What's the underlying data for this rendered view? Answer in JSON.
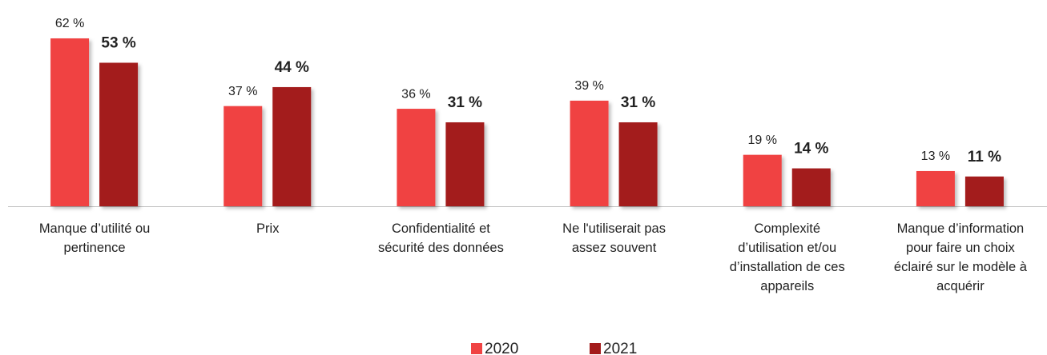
{
  "chart_data": {
    "type": "bar",
    "categories": [
      "Manque d’utilité ou\npertinence",
      "Prix",
      "Confidentialité et\nsécurité des données",
      "Ne l'utiliserait pas\nassez souvent",
      "Complexité\nd’utilisation et/ou\nd’installation de ces\nappareils",
      "Manque d’information\npour faire un choix\néclairé sur le modèle à\nacquérir"
    ],
    "series": [
      {
        "name": "2020",
        "color": "#f04343",
        "values": [
          62,
          37,
          36,
          39,
          19,
          13
        ],
        "value_labels": [
          "62 %",
          "37 %",
          "36 %",
          "39 %",
          "19 %",
          "13 %"
        ]
      },
      {
        "name": "2021",
        "color": "#a31b1b",
        "values": [
          53,
          44,
          31,
          31,
          14,
          11
        ],
        "value_labels": [
          "53 %",
          "44 %",
          "31 %",
          "31 %",
          "14 %",
          "11 %"
        ]
      }
    ],
    "legend": "bottom"
  }
}
